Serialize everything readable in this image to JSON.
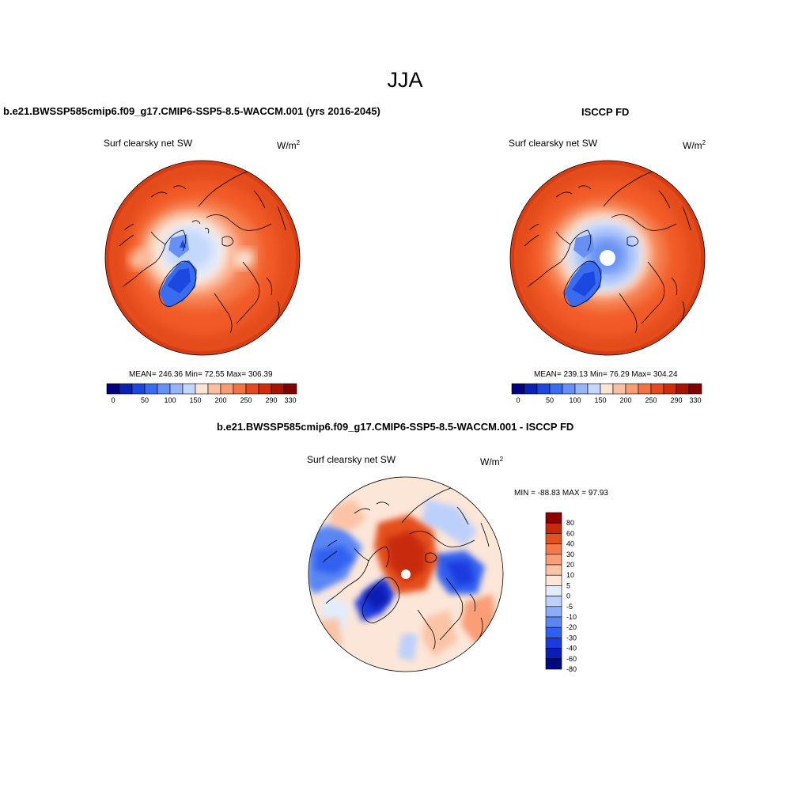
{
  "figure": {
    "title": "JJA",
    "left_title": "b.e21.BWSSP585cmip6.f09_g17.CMIP6-SSP5-8.5-WACCM.001 (yrs 2016-2045)",
    "right_title": "ISCCP FD",
    "diff_title": "b.e21.BWSSP585cmip6.f09_g17.CMIP6-SSP5-8.5-WACCM.001 - ISCCP FD"
  },
  "panels": {
    "model": {
      "variable": "Surf clearsky net SW",
      "units": "W/m",
      "units_exp": "2",
      "stats": {
        "mean": "246.36",
        "min": "72.55",
        "max": "306.39"
      },
      "stats_text": "MEAN= 246.36  Min=  72.55  Max= 306.39"
    },
    "obs": {
      "variable": "Surf clearsky net SW",
      "units": "W/m",
      "units_exp": "2",
      "stats": {
        "mean": "239.13",
        "min": "76.29",
        "max": "304.24"
      },
      "stats_text": "MEAN= 239.13  Min=  76.29  Max= 304.24"
    },
    "diff": {
      "variable": "Surf clearsky net SW",
      "units": "W/m",
      "units_exp": "2",
      "stats": {
        "min": "-88.83",
        "max": "97.93"
      },
      "stats_text": "MIN = -88.83 MAX =  97.93"
    }
  },
  "colorbars": {
    "abs": {
      "colors": [
        "#00007f",
        "#0a22b4",
        "#1c48e0",
        "#3a6cf0",
        "#6690f4",
        "#96b4f8",
        "#c4d8fc",
        "#fbe4d4",
        "#fbc0a0",
        "#f99c72",
        "#f47244",
        "#e84820",
        "#d02c0c",
        "#a81400",
        "#7e0000"
      ],
      "labels": [
        "0",
        "50",
        "100",
        "150",
        "200",
        "250",
        "290",
        "330"
      ]
    },
    "diff": {
      "colors": [
        "#000a7e",
        "#0a1eb4",
        "#1c3ade",
        "#3060f0",
        "#5a86f4",
        "#8cacf8",
        "#bcd0fc",
        "#e2ecfc",
        "#fce6d8",
        "#fcc4a6",
        "#f99e76",
        "#f3784a",
        "#e4501e",
        "#c82a08",
        "#8c0000"
      ],
      "labels": [
        "80",
        "60",
        "40",
        "30",
        "20",
        "10",
        "5",
        "0",
        "-5",
        "-10",
        "-20",
        "-30",
        "-40",
        "-60",
        "-80"
      ]
    }
  }
}
